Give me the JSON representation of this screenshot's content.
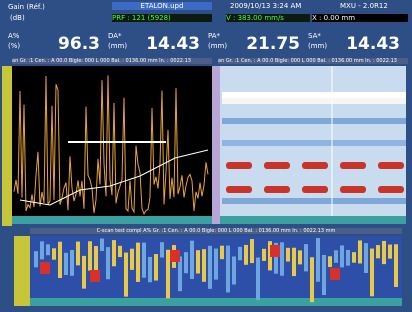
{
  "header": {
    "gain_label": "Gain (Réf.)",
    "gain_unit": "(dB)",
    "file": "ETALON.upd",
    "datetime": "2009/10/13 3:24 AM",
    "version": "MXU - 2.0R12",
    "prf": "PRF : 121 (5928)",
    "velocity": "V : 383.00 mm/s",
    "position": "X : 0.00 mm"
  },
  "readouts": [
    {
      "label": "A%",
      "unit": "(%)",
      "value": 96.3
    },
    {
      "label": "DA*",
      "unit": "(mm)",
      "value": 14.43
    },
    {
      "label": "PA*",
      "unit": "(mm)",
      "value": 21.75
    },
    {
      "label": "SA*",
      "unit": "(mm)",
      "value": 14.43
    }
  ],
  "panels": {
    "ascan": "an Gr. :1 Cen. : A 00.0 Bigle: 000 L 000 Bal. : 0136.00 mm In. : 0022.13",
    "bscan": "an Gr. :1 Cen. : A 00.0 Bigle: 000 L 000 Bal. : 0136.00 mm In. : 0022.13",
    "cscan": "C-scan test compl A% Gr. :1 Cen. : A 00.0 Bigle: 000 L 000 Bal. : 0136.00 mm In. : 0022.13 mm"
  }
}
